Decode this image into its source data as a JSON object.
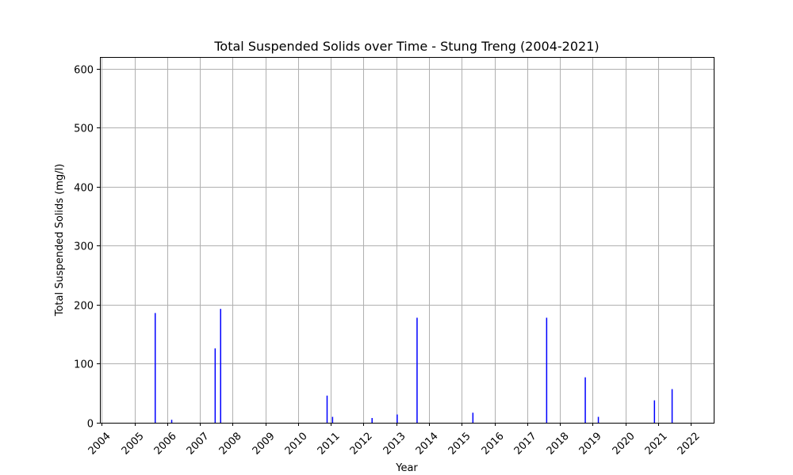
{
  "chart_data": {
    "type": "bar",
    "title": "Total Suspended Solids over Time - Stung Treng (2004-2021)",
    "xlabel": "Year",
    "ylabel": "Total Suspended Solids (mg/l)",
    "xlim": [
      "2003-12-12",
      "2022-09-12"
    ],
    "ylim": [
      0,
      620
    ],
    "xticks": [
      "2004",
      "2005",
      "2006",
      "2007",
      "2008",
      "2009",
      "2010",
      "2011",
      "2012",
      "2013",
      "2014",
      "2015",
      "2016",
      "2017",
      "2018",
      "2019",
      "2020",
      "2021",
      "2022"
    ],
    "yticks": [
      0,
      100,
      200,
      300,
      400,
      500,
      600
    ],
    "grid": true,
    "bar_color": "#0000ff",
    "points": [
      {
        "date": "2005-08-20",
        "value": 186
      },
      {
        "date": "2006-02-20",
        "value": 5
      },
      {
        "date": "2007-06-20",
        "value": 126
      },
      {
        "date": "2007-08-20",
        "value": 193
      },
      {
        "date": "2010-11-20",
        "value": 46
      },
      {
        "date": "2011-01-20",
        "value": 10
      },
      {
        "date": "2012-04-05",
        "value": 8
      },
      {
        "date": "2013-01-10",
        "value": 14
      },
      {
        "date": "2013-08-20",
        "value": 178
      },
      {
        "date": "2015-05-05",
        "value": 17
      },
      {
        "date": "2017-08-05",
        "value": 178
      },
      {
        "date": "2018-10-10",
        "value": 77
      },
      {
        "date": "2019-03-05",
        "value": 10
      },
      {
        "date": "2020-11-20",
        "value": 38
      },
      {
        "date": "2021-06-05",
        "value": 57
      }
    ]
  }
}
